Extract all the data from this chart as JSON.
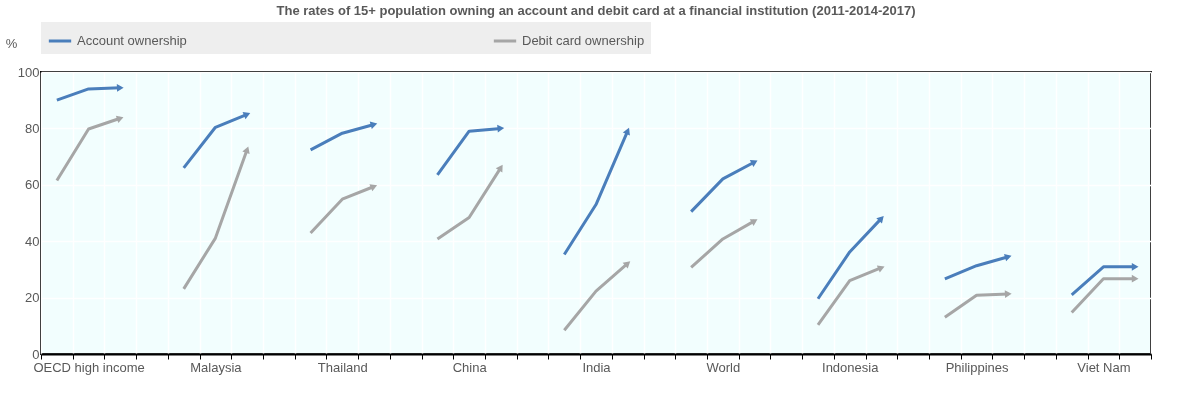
{
  "chart_data": {
    "type": "line",
    "title": "The rates of 15+ population owning an account and debit card at a financial institution (2011-2014-2017)",
    "ylabel": "%",
    "categories": [
      null,
      "OECD high income",
      null,
      null,
      null,
      "Malaysia",
      null,
      null,
      null,
      "Thailand",
      null,
      null,
      null,
      "China",
      null,
      null,
      null,
      "India",
      null,
      null,
      null,
      "World",
      null,
      null,
      null,
      "Indonesia",
      null,
      null,
      null,
      "Philippines",
      null,
      null,
      null,
      "Viet Nam",
      null
    ],
    "series": [
      {
        "name": "Account ownership",
        "color": "#4a7ebb",
        "values": [
          90,
          94,
          94.4,
          null,
          66,
          80.4,
          85,
          null,
          72.4,
          78.3,
          81.4,
          null,
          63.5,
          79,
          80,
          null,
          35.3,
          53,
          79.1,
          null,
          50.5,
          62.1,
          68.1,
          null,
          19.6,
          36.2,
          48.1,
          null,
          26.6,
          31.3,
          34.5,
          null,
          21,
          30.9,
          30.9
        ]
      },
      {
        "name": "Debit card ownership",
        "color": "#a6a6a6",
        "values": [
          61.5,
          79.8,
          83.6,
          null,
          23.1,
          41.1,
          72.5,
          null,
          42.9,
          54.9,
          59.4,
          null,
          40.8,
          48.4,
          66.1,
          null,
          8.4,
          22.3,
          32.1,
          null,
          30.7,
          40.8,
          47.2,
          null,
          10.3,
          26,
          30.6,
          null,
          13,
          20.8,
          21.3,
          null,
          14.7,
          26.7,
          26.7
        ]
      }
    ],
    "ylim": [
      0,
      100
    ],
    "yticks": [
      0,
      20,
      40,
      60,
      80,
      100
    ],
    "grid": true,
    "legend": "top"
  }
}
